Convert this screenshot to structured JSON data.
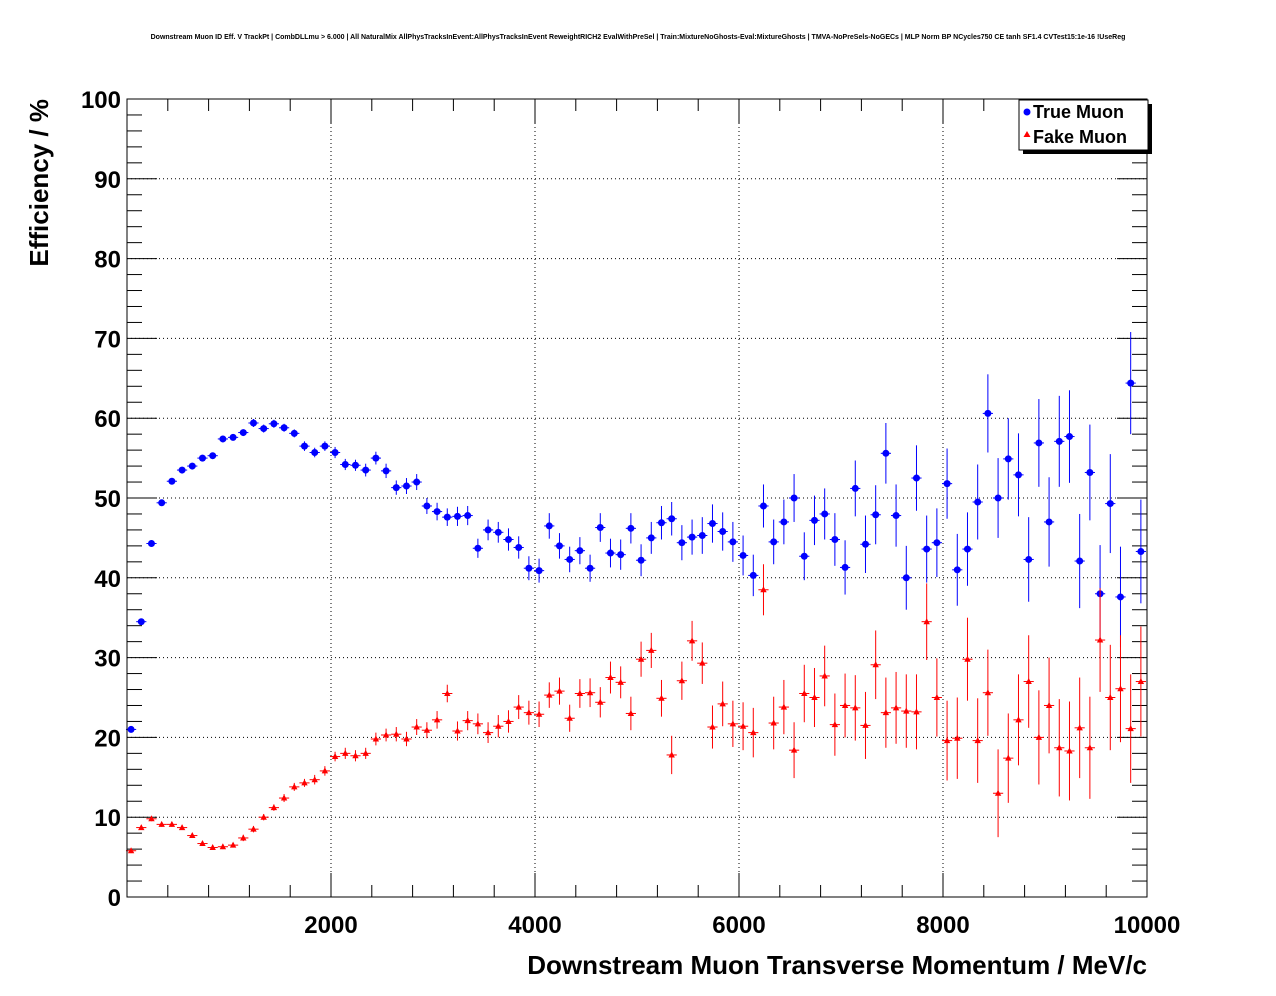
{
  "chart_data": {
    "type": "scatter",
    "title": "Downstream Muon ID Eff. V TrackPt | CombDLLmu > 6.000 | All NaturalMix AllPhysTracksInEvent:AllPhysTracksInEvent ReweightRICH2 EvalWithPreSel | Train:MixtureNoGhosts-Eval:MixtureGhosts | TMVA-NoPreSels-NoGECs | MLP Norm BP NCycles750 CE tanh SF1.4 CVTest15:1e-16 !UseReg",
    "xlabel": "Downstream Muon Transverse Momentum / MeV/c",
    "ylabel": "Efficiency / %",
    "xlim": [
      0,
      10000
    ],
    "ylim": [
      0,
      100
    ],
    "xticks": [
      2000,
      4000,
      6000,
      8000,
      10000
    ],
    "yticks": [
      0,
      10,
      20,
      30,
      40,
      50,
      60,
      70,
      80,
      90,
      100
    ],
    "grid": true,
    "legend_position": "top-right",
    "series": [
      {
        "name": "True Muon",
        "color": "#0000ff",
        "marker": "circle",
        "x": [
          40,
          140,
          240,
          340,
          440,
          540,
          640,
          740,
          840,
          940,
          1040,
          1140,
          1240,
          1340,
          1440,
          1540,
          1640,
          1740,
          1840,
          1940,
          2040,
          2140,
          2240,
          2340,
          2440,
          2540,
          2640,
          2740,
          2840,
          2940,
          3040,
          3140,
          3240,
          3340,
          3440,
          3540,
          3640,
          3740,
          3840,
          3940,
          4040,
          4140,
          4240,
          4340,
          4440,
          4540,
          4640,
          4740,
          4840,
          4940,
          5040,
          5140,
          5240,
          5340,
          5440,
          5540,
          5640,
          5740,
          5840,
          5940,
          6040,
          6140,
          6240,
          6340,
          6440,
          6540,
          6640,
          6740,
          6840,
          6940,
          7040,
          7140,
          7240,
          7340,
          7440,
          7540,
          7640,
          7740,
          7840,
          7940,
          8040,
          8140,
          8240,
          8340,
          8440,
          8540,
          8640,
          8740,
          8840,
          8940,
          9040,
          9140,
          9240,
          9340,
          9440,
          9540,
          9640,
          9740,
          9840,
          9940
        ],
        "y": [
          21,
          34.5,
          44.3,
          49.4,
          52.1,
          53.5,
          54,
          55,
          55.3,
          57.4,
          57.6,
          58.2,
          59.4,
          58.7,
          59.3,
          58.8,
          58.1,
          56.5,
          55.7,
          56.5,
          55.7,
          54.2,
          54.1,
          53.5,
          55,
          53.4,
          51.3,
          51.5,
          52,
          49,
          48.3,
          47.6,
          47.7,
          47.8,
          43.7,
          46,
          45.7,
          44.8,
          43.8,
          41.2,
          40.9,
          46.5,
          44,
          42.3,
          43.4,
          41.2,
          46.3,
          43.1,
          42.9,
          46.2,
          42.2,
          45,
          46.9,
          47.4,
          44.4,
          45.1,
          45.3,
          46.8,
          45.8,
          44.5,
          42.8,
          40.3,
          49,
          44.5,
          47,
          50,
          42.7,
          47.2,
          48,
          44.8,
          41.3,
          51.2,
          44.2,
          47.9,
          55.6,
          47.8,
          40,
          52.5,
          43.6,
          44.4,
          51.8,
          41,
          43.6,
          49.5,
          60.6,
          50,
          54.9,
          52.9,
          42.3,
          56.9,
          47,
          57.1,
          57.7,
          42.1,
          53.2,
          38,
          49.3,
          37.6,
          64.4,
          43.3
        ],
        "err": [
          0.4,
          0.4,
          0.4,
          0.4,
          0.4,
          0.4,
          0.4,
          0.4,
          0.4,
          0.4,
          0.4,
          0.4,
          0.5,
          0.5,
          0.5,
          0.5,
          0.5,
          0.6,
          0.6,
          0.6,
          0.7,
          0.7,
          0.7,
          0.8,
          0.8,
          0.9,
          0.9,
          1.0,
          1.0,
          1.0,
          1.1,
          1.1,
          1.2,
          1.2,
          1.2,
          1.3,
          1.3,
          1.4,
          1.4,
          1.5,
          1.5,
          1.6,
          1.6,
          1.6,
          1.7,
          1.7,
          1.8,
          1.8,
          1.9,
          1.9,
          2.0,
          2.0,
          2.1,
          2.1,
          2.2,
          2.2,
          2.3,
          2.4,
          2.4,
          2.5,
          2.5,
          2.6,
          2.7,
          2.8,
          2.8,
          3.0,
          3.0,
          3.1,
          3.2,
          3.3,
          3.4,
          3.5,
          3.6,
          3.7,
          3.8,
          3.9,
          4.0,
          4.1,
          4.2,
          4.3,
          4.4,
          4.5,
          4.6,
          4.7,
          4.9,
          5.0,
          5.1,
          5.2,
          5.3,
          5.5,
          5.6,
          5.7,
          5.8,
          5.9,
          6.0,
          6.1,
          6.2,
          6.3,
          6.4,
          6.5
        ]
      },
      {
        "name": "Fake Muon",
        "color": "#ff0000",
        "marker": "triangle",
        "x": [
          40,
          140,
          240,
          340,
          440,
          540,
          640,
          740,
          840,
          940,
          1040,
          1140,
          1240,
          1340,
          1440,
          1540,
          1640,
          1740,
          1840,
          1940,
          2040,
          2140,
          2240,
          2340,
          2440,
          2540,
          2640,
          2740,
          2840,
          2940,
          3040,
          3140,
          3240,
          3340,
          3440,
          3540,
          3640,
          3740,
          3840,
          3940,
          4040,
          4140,
          4240,
          4340,
          4440,
          4540,
          4640,
          4740,
          4840,
          4940,
          5040,
          5140,
          5240,
          5340,
          5440,
          5540,
          5640,
          5740,
          5840,
          5940,
          6040,
          6140,
          6240,
          6340,
          6440,
          6540,
          6640,
          6740,
          6840,
          6940,
          7040,
          7140,
          7240,
          7340,
          7440,
          7540,
          7640,
          7740,
          7840,
          7940,
          8040,
          8140,
          8240,
          8340,
          8440,
          8540,
          8640,
          8740,
          8840,
          8940,
          9040,
          9140,
          9240,
          9340,
          9440,
          9540,
          9640,
          9740,
          9840,
          9940
        ],
        "y": [
          5.8,
          8.7,
          9.8,
          9.1,
          9.1,
          8.7,
          7.7,
          6.7,
          6.2,
          6.3,
          6.5,
          7.4,
          8.5,
          10,
          11.2,
          12.4,
          13.8,
          14.3,
          14.7,
          15.8,
          17.6,
          18,
          17.7,
          18,
          19.8,
          20.3,
          20.4,
          19.8,
          21.3,
          20.9,
          22.2,
          25.5,
          20.8,
          22.1,
          21.7,
          20.6,
          21.4,
          22,
          23.8,
          23.1,
          22.9,
          25.3,
          25.8,
          22.4,
          25.5,
          25.6,
          24.4,
          27.5,
          26.9,
          23,
          29.8,
          30.9,
          24.9,
          17.8,
          27.1,
          32.1,
          29.3,
          21.3,
          24.2,
          21.7,
          21.4,
          20.6,
          38.5,
          21.8,
          23.8,
          18.4,
          25.5,
          25,
          27.7,
          21.6,
          24,
          23.7,
          21.5,
          29.1,
          23.1,
          23.7,
          23.3,
          23.2,
          34.5,
          25,
          19.6,
          19.9,
          29.8,
          19.6,
          25.6,
          13,
          17.4,
          22.2,
          27,
          20,
          24,
          18.7,
          18.3,
          21.2,
          18.7,
          32.2,
          25,
          26.1,
          21.1,
          27
        ],
        "err": [
          0.3,
          0.3,
          0.3,
          0.3,
          0.3,
          0.3,
          0.3,
          0.3,
          0.3,
          0.3,
          0.3,
          0.4,
          0.4,
          0.4,
          0.4,
          0.5,
          0.5,
          0.5,
          0.6,
          0.6,
          0.6,
          0.7,
          0.7,
          0.7,
          0.8,
          0.8,
          0.9,
          0.9,
          1.0,
          1.0,
          1.1,
          1.1,
          1.2,
          1.2,
          1.3,
          1.3,
          1.4,
          1.4,
          1.5,
          1.5,
          1.6,
          1.6,
          1.7,
          1.7,
          1.8,
          1.8,
          1.9,
          2.0,
          2.0,
          2.1,
          2.2,
          2.2,
          2.3,
          2.4,
          2.4,
          2.5,
          2.6,
          2.7,
          2.8,
          2.9,
          3.0,
          3.1,
          3.2,
          3.3,
          3.4,
          3.5,
          3.6,
          3.7,
          3.8,
          3.9,
          4.0,
          4.1,
          4.2,
          4.3,
          4.4,
          4.5,
          4.6,
          4.7,
          4.8,
          4.9,
          5.0,
          5.1,
          5.2,
          5.3,
          5.4,
          5.5,
          5.6,
          5.7,
          5.8,
          5.9,
          6.0,
          6.1,
          6.2,
          6.3,
          6.4,
          6.5,
          6.6,
          6.7,
          6.8,
          6.9
        ]
      }
    ]
  }
}
